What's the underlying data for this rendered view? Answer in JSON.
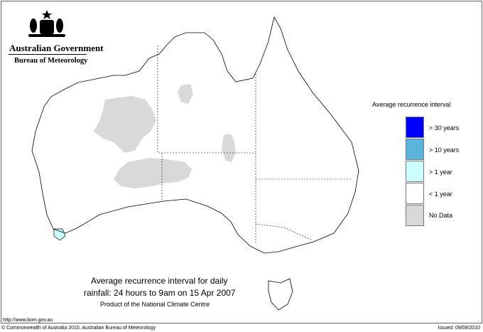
{
  "header": {
    "government": "Australian Government",
    "bureau": "Bureau of Meteorology"
  },
  "legend": {
    "title": "Average recurrence interval",
    "items": [
      {
        "label": "> 30 years",
        "color": "#0000ff"
      },
      {
        "label": "> 10 years",
        "color": "#5ab4dc"
      },
      {
        "label": "> 1 year",
        "color": "#ccffff"
      },
      {
        "label": "< 1 year",
        "color": "#ffffff"
      },
      {
        "label": "No Data",
        "color": "#d9d9d9"
      }
    ]
  },
  "map": {
    "region": "Australia",
    "title_line1": "Average recurrence interval for daily",
    "title_line2": "rainfall: 24 hours to 9am on 15 Apr 2007",
    "product": "Product of the National Climate Centre"
  },
  "footer": {
    "url": "http://www.bom.gov.au",
    "copyright": "© Commonwealth of Australia 2010, Australian Bureau of Meteorology",
    "issued": "Issued: 09/08/2010"
  }
}
